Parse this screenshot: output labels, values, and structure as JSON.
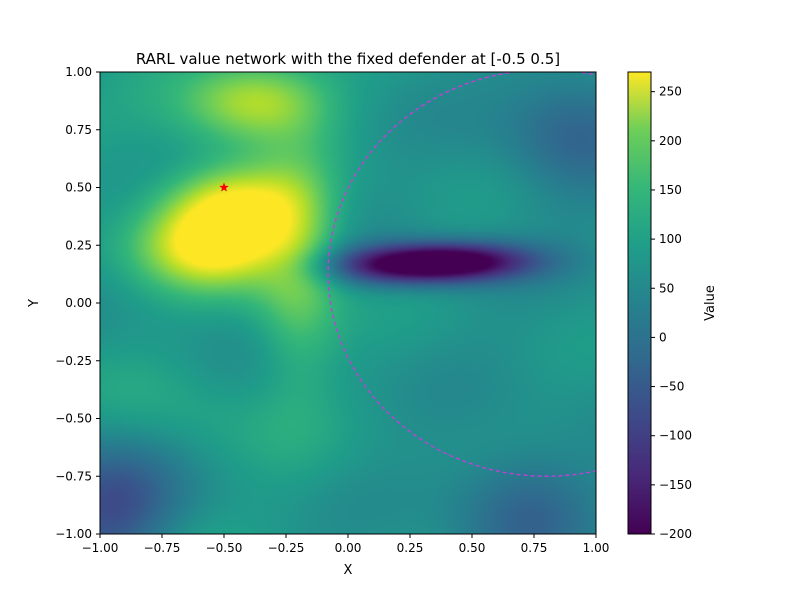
{
  "chart_data": {
    "type": "heatmap",
    "title": "RARL value network with the fixed defender at [-0.5  0.5]",
    "xlabel": "X",
    "ylabel": "Y",
    "xlim": [
      -1.0,
      1.0
    ],
    "ylim": [
      -1.0,
      1.0
    ],
    "x_ticks": [
      "−1.00",
      "−0.75",
      "−0.50",
      "−0.25",
      "0.00",
      "0.25",
      "0.50",
      "0.75",
      "1.00"
    ],
    "y_ticks": [
      "−1.00",
      "−0.75",
      "−0.50",
      "−0.25",
      "0.00",
      "0.25",
      "0.50",
      "0.75",
      "1.00"
    ],
    "colorbar": {
      "label": "Value",
      "range": [
        -200,
        270
      ],
      "ticks": [
        "−200",
        "−150",
        "−100",
        "−50",
        "0",
        "50",
        "100",
        "150",
        "200",
        "250"
      ],
      "colormap": "viridis"
    },
    "features": [
      {
        "kind": "peak",
        "x": -0.45,
        "y": 0.42,
        "value": 250
      },
      {
        "kind": "peak",
        "x": -0.55,
        "y": 0.24,
        "value": 240
      },
      {
        "kind": "peak",
        "x": -0.38,
        "y": 0.88,
        "value": 195
      },
      {
        "kind": "ridge",
        "x": -0.2,
        "y": 0.15,
        "value": 150
      },
      {
        "kind": "trough",
        "x": 0.45,
        "y": 0.18,
        "value": -195
      },
      {
        "kind": "trough",
        "x": 0.18,
        "y": 0.16,
        "value": -140
      },
      {
        "kind": "low",
        "x": -0.97,
        "y": -0.9,
        "value": -100
      },
      {
        "kind": "low",
        "x": 0.9,
        "y": 0.75,
        "value": -45
      },
      {
        "kind": "low",
        "x": 0.7,
        "y": -0.9,
        "value": -45
      },
      {
        "kind": "background",
        "value": 40
      }
    ],
    "marker": {
      "x": -0.5,
      "y": 0.5,
      "symbol": "star",
      "color": "#ff0000"
    },
    "circle": {
      "cx": 0.8,
      "cy": 0.13,
      "r": 0.88,
      "style": "dashed",
      "color": "#c040d8"
    },
    "grid": false,
    "legend": "none"
  }
}
